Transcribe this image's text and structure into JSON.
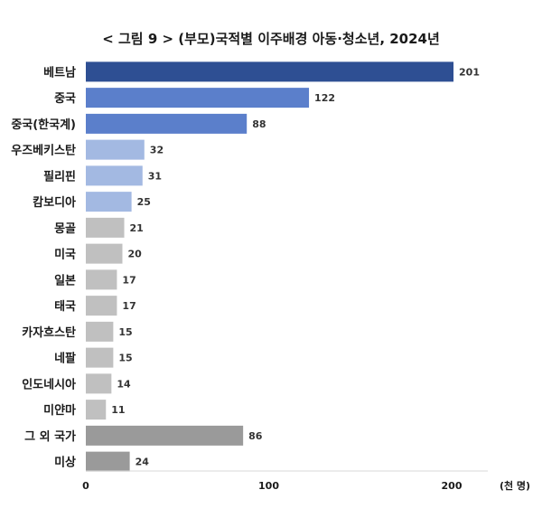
{
  "chart_data": {
    "type": "bar",
    "orientation": "horizontal",
    "title": "< 그림 9 > (부모)국적별 이주배경 아동·청소년, 2024년",
    "unit_label": "(천 명)",
    "categories": [
      "베트남",
      "중국",
      "중국(한국계)",
      "우즈베키스탄",
      "필리핀",
      "캄보디아",
      "몽골",
      "미국",
      "일본",
      "태국",
      "카자흐스탄",
      "네팔",
      "인도네시아",
      "미얀마",
      "그 외 국가",
      "미상"
    ],
    "values": [
      201,
      122,
      88,
      32,
      31,
      25,
      21,
      20,
      17,
      17,
      15,
      15,
      14,
      11,
      86,
      24
    ],
    "bar_colors": [
      "#2e4f93",
      "#5b7fcb",
      "#5b7fcb",
      "#a3b9e2",
      "#a3b9e2",
      "#a3b9e2",
      "#c0c0c0",
      "#c0c0c0",
      "#c0c0c0",
      "#c0c0c0",
      "#c0c0c0",
      "#c0c0c0",
      "#c0c0c0",
      "#c0c0c0",
      "#9a9a9a",
      "#9a9a9a"
    ],
    "x_ticks": [
      0,
      100,
      200
    ],
    "xlim": [
      0,
      200
    ],
    "grid": false,
    "data_labels": true
  }
}
